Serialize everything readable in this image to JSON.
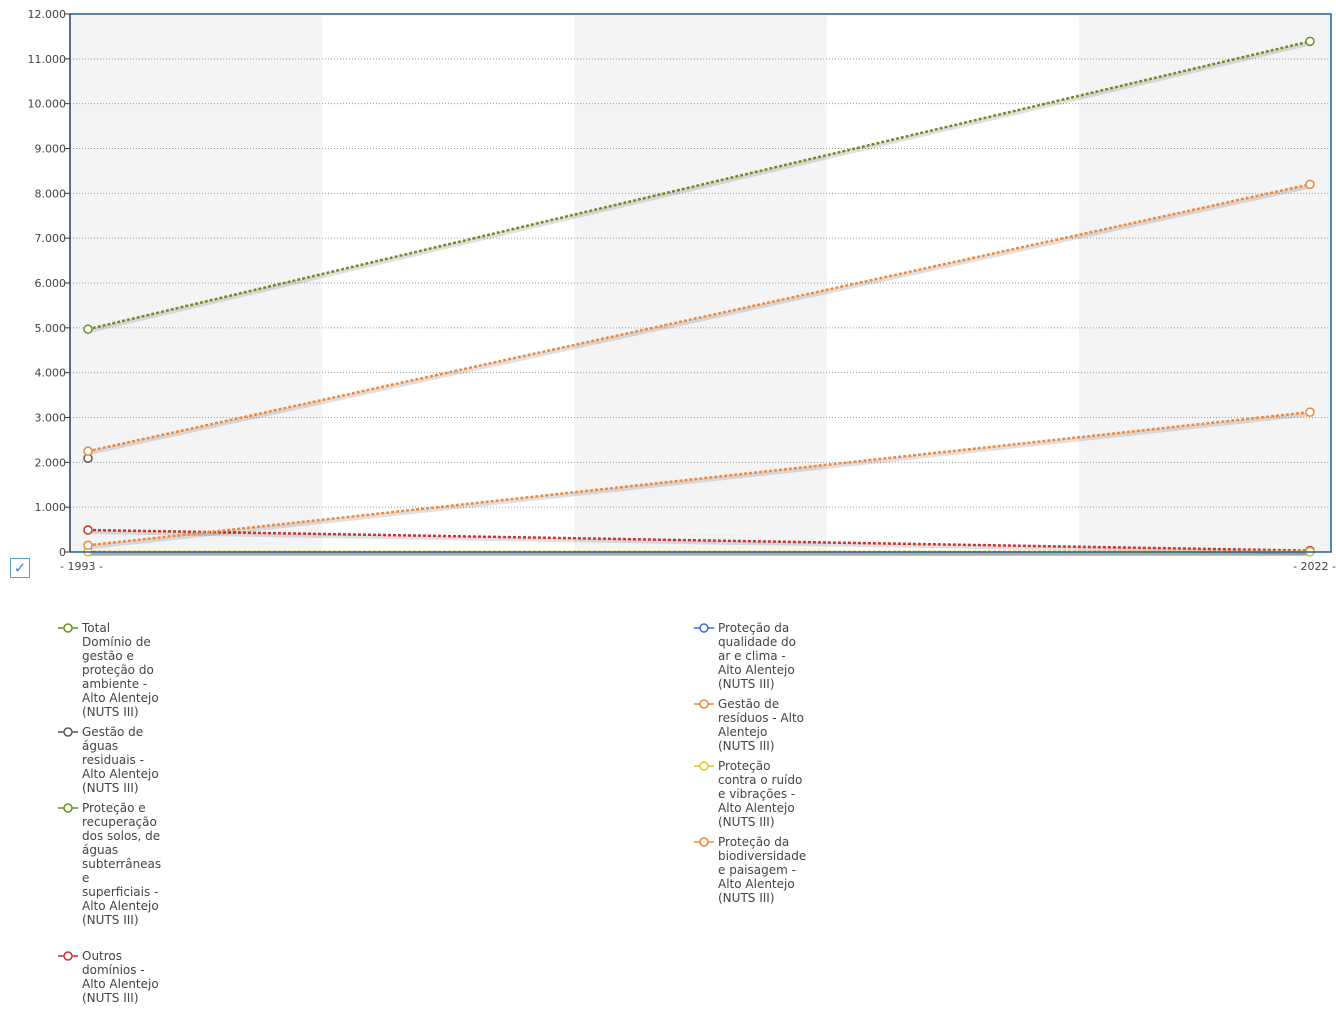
{
  "chart_data": {
    "type": "line",
    "x": [
      "1993",
      "2022"
    ],
    "x_tick_labels": [
      "- 1993 -",
      "- 2022 -"
    ],
    "ylim": [
      0,
      12000
    ],
    "y_ticks": [
      0,
      1000,
      2000,
      3000,
      4000,
      5000,
      6000,
      7000,
      8000,
      9000,
      10000,
      11000,
      12000
    ],
    "y_tick_labels": [
      "0",
      "1.000",
      "2.000",
      "3.000",
      "4.000",
      "5.000",
      "6.000",
      "7.000",
      "8.000",
      "9.000",
      "10.000",
      "11.000",
      "12.000"
    ],
    "grid": true,
    "legend_position": "bottom",
    "series": [
      {
        "name": "Total Domínio de gestão e proteção do ambiente - Alto Alentejo (NUTS III)",
        "color": "#6b8e23",
        "values": [
          4970,
          11390
        ]
      },
      {
        "name": "Gestão de águas residuais - Alto Alentejo (NUTS III)",
        "color": "#555555",
        "values": [
          2090,
          null
        ]
      },
      {
        "name": "Proteção e recuperação dos solos, de águas subterrâneas e superficiais - Alto Alentejo (NUTS III)",
        "color": "#6b8e23",
        "values": [
          5,
          5
        ]
      },
      {
        "name": "Outros domínios - Alto Alentejo (NUTS III)",
        "color": "#d03030",
        "values": [
          490,
          30
        ]
      },
      {
        "name": "Proteção da qualidade do ar e clima - Alto Alentejo (NUTS III)",
        "color": "#3b6fd8",
        "values": [
          5,
          5
        ]
      },
      {
        "name": "Gestão de resíduos - Alto Alentejo (NUTS III)",
        "color": "#f0883a",
        "values": [
          2250,
          8200
        ]
      },
      {
        "name": "Proteção contra o ruído e vibrações - Alto Alentejo (NUTS III)",
        "color": "#e8c020",
        "values": [
          5,
          5
        ]
      },
      {
        "name": "Proteção da biodiversidade e paisagem - Alto Alentejo (NUTS III)",
        "color": "#f0883a",
        "values": [
          150,
          3120
        ]
      }
    ]
  },
  "ui": {
    "checkbox_glyph": "✓"
  }
}
